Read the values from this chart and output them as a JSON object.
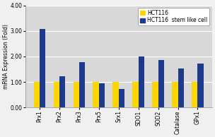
{
  "categories": [
    "Prx1",
    "Prx2",
    "Prx3",
    "Prx5",
    "Srx1",
    "SDO1",
    "SOD2",
    "Catalase",
    "GPx1"
  ],
  "hct116_values": [
    1.0,
    1.0,
    1.0,
    1.0,
    1.0,
    1.0,
    1.0,
    1.0,
    1.0
  ],
  "stem_values": [
    3.08,
    1.22,
    1.78,
    0.95,
    0.72,
    2.0,
    1.85,
    1.52,
    1.73
  ],
  "hct116_color": "#FFD700",
  "stem_color": "#1E3A8A",
  "ylabel": "mRNA Expression (Fold)",
  "ylim": [
    0,
    4.0
  ],
  "yticks": [
    0.0,
    1.0,
    2.0,
    3.0,
    4.0
  ],
  "ytick_labels": [
    "0.00",
    "1.00",
    "2.00",
    "3.00",
    "4.00"
  ],
  "legend_hct116": "HCT116",
  "legend_stem": "HCT116  stem like cell",
  "bar_width": 0.3,
  "plot_bg_color": "#D8D8D8",
  "outer_bg_color": "#F0F0F0",
  "axis_fontsize": 5.5,
  "tick_fontsize": 5.5,
  "legend_fontsize": 5.5
}
